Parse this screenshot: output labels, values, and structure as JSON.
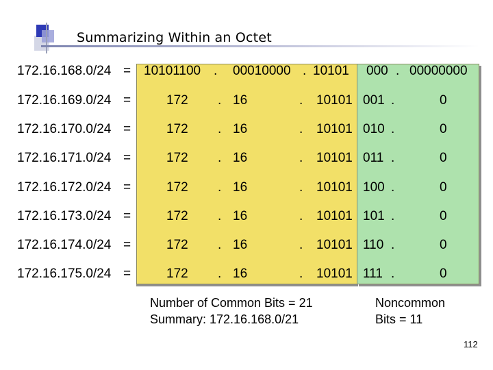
{
  "slide": {
    "title": "Summarizing Within an Octet",
    "page_number": "112"
  },
  "summary_row": {
    "network": "172.16.168.0/24",
    "equals": "=",
    "octet1": "10101100",
    "dot1": ".",
    "octet2": "00010000",
    "dot2": ".",
    "octet3_common": "10101",
    "octet3_noncommon": "000",
    "dot3": ".",
    "octet4": "00000000"
  },
  "rows": [
    {
      "network": "172.16.169.0/24",
      "equals": "=",
      "octet1": "172",
      "dot1": ".",
      "octet2": "16",
      "dot2": ".",
      "octet3_common": "10101",
      "octet3_noncommon": "001",
      "dot3": ".",
      "octet4": "0"
    },
    {
      "network": "172.16.170.0/24",
      "equals": "=",
      "octet1": "172",
      "dot1": ".",
      "octet2": "16",
      "dot2": ".",
      "octet3_common": "10101",
      "octet3_noncommon": "010",
      "dot3": ".",
      "octet4": "0"
    },
    {
      "network": "172.16.171.0/24",
      "equals": "=",
      "octet1": "172",
      "dot1": ".",
      "octet2": "16",
      "dot2": ".",
      "octet3_common": "10101",
      "octet3_noncommon": "011",
      "dot3": ".",
      "octet4": "0"
    },
    {
      "network": "172.16.172.0/24",
      "equals": "=",
      "octet1": "172",
      "dot1": ".",
      "octet2": "16",
      "dot2": ".",
      "octet3_common": "10101",
      "octet3_noncommon": "100",
      "dot3": ".",
      "octet4": "0"
    },
    {
      "network": "172.16.173.0/24",
      "equals": "=",
      "octet1": "172",
      "dot1": ".",
      "octet2": "16",
      "dot2": ".",
      "octet3_common": "10101",
      "octet3_noncommon": "101",
      "dot3": ".",
      "octet4": "0"
    },
    {
      "network": "172.16.174.0/24",
      "equals": "=",
      "octet1": "172",
      "dot1": ".",
      "octet2": "16",
      "dot2": ".",
      "octet3_common": "10101",
      "octet3_noncommon": "110",
      "dot3": ".",
      "octet4": "0"
    },
    {
      "network": "172.16.175.0/24",
      "equals": "=",
      "octet1": "172",
      "dot1": ".",
      "octet2": "16",
      "dot2": ".",
      "octet3_common": "10101",
      "octet3_noncommon": "111",
      "dot3": ".",
      "octet4": "0"
    }
  ],
  "notes": {
    "common": "Number of Common Bits = 21\nSummary: 172.16.168.0/21",
    "noncommon": "Noncommon\nBits = 11"
  },
  "colors": {
    "common_region": "#f2e068",
    "noncommon_region": "#aee2ad",
    "logo_blue": "#2e3ab5"
  },
  "icons": {
    "logo": "slide-logo-squares"
  }
}
